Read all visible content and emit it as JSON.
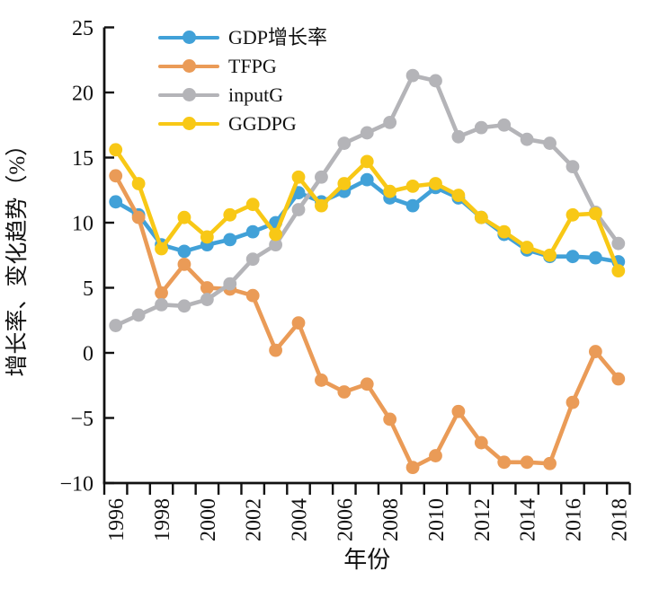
{
  "figure": {
    "xlabel": "年份",
    "ylabel": "增长率、变化趋势（%）"
  },
  "chart_data": {
    "type": "line",
    "title": "",
    "xlabel": "年份",
    "ylabel": "增长率、变化趋势（%）",
    "x": [
      1996,
      1997,
      1998,
      1999,
      2000,
      2001,
      2002,
      2003,
      2004,
      2005,
      2006,
      2007,
      2008,
      2009,
      2010,
      2011,
      2012,
      2013,
      2014,
      2015,
      2016,
      2017,
      2018
    ],
    "series": [
      {
        "name": "GDP增长率",
        "color": "#41A1D8",
        "values": [
          11.6,
          10.6,
          8.3,
          7.8,
          8.3,
          8.7,
          9.3,
          10.0,
          12.3,
          11.6,
          12.4,
          13.3,
          11.9,
          11.3,
          12.7,
          11.9,
          10.4,
          9.1,
          7.9,
          7.4,
          7.4,
          7.3,
          7.0
        ]
      },
      {
        "name": "TFPG",
        "color": "#EA9B57",
        "values": [
          13.6,
          10.4,
          4.6,
          6.8,
          5.0,
          4.9,
          4.4,
          0.2,
          2.3,
          -2.1,
          -3.0,
          -2.4,
          -5.1,
          -8.8,
          -7.9,
          -4.5,
          -6.9,
          -8.4,
          -8.4,
          -8.5,
          -3.8,
          0.1,
          -2.0
        ]
      },
      {
        "name": "inputG",
        "color": "#B4B4B8",
        "values": [
          2.1,
          2.9,
          3.7,
          3.6,
          4.1,
          5.3,
          7.2,
          8.3,
          11.0,
          13.5,
          16.1,
          16.9,
          17.7,
          21.3,
          20.9,
          16.6,
          17.3,
          17.5,
          16.4,
          16.1,
          14.3,
          10.8,
          8.4
        ]
      },
      {
        "name": "GGDPG",
        "color": "#F8C816",
        "values": [
          15.6,
          13.0,
          8.0,
          10.4,
          8.9,
          10.6,
          11.4,
          9.1,
          13.5,
          11.3,
          13.0,
          14.7,
          12.4,
          12.8,
          13.0,
          12.1,
          10.4,
          9.3,
          8.1,
          7.5,
          10.6,
          10.7,
          6.3
        ]
      }
    ],
    "ylim": [
      -10,
      25
    ],
    "yticks": [
      {
        "value": -10,
        "label": "−10"
      },
      {
        "value": -5,
        "label": "−5"
      },
      {
        "value": 0,
        "label": "0"
      },
      {
        "value": 5,
        "label": "5"
      },
      {
        "value": 10,
        "label": "10"
      },
      {
        "value": 15,
        "label": "15"
      },
      {
        "value": 20,
        "label": "20"
      },
      {
        "value": 25,
        "label": "25"
      }
    ],
    "xtick_labels": [
      "1996",
      "1998",
      "2000",
      "2002",
      "2004",
      "2006",
      "2008",
      "2010",
      "2012",
      "2014",
      "2016",
      "2018"
    ],
    "xtick_label_every": 2,
    "legend_position": "top-left-inside",
    "grid": false,
    "axis_color": "#111111"
  }
}
